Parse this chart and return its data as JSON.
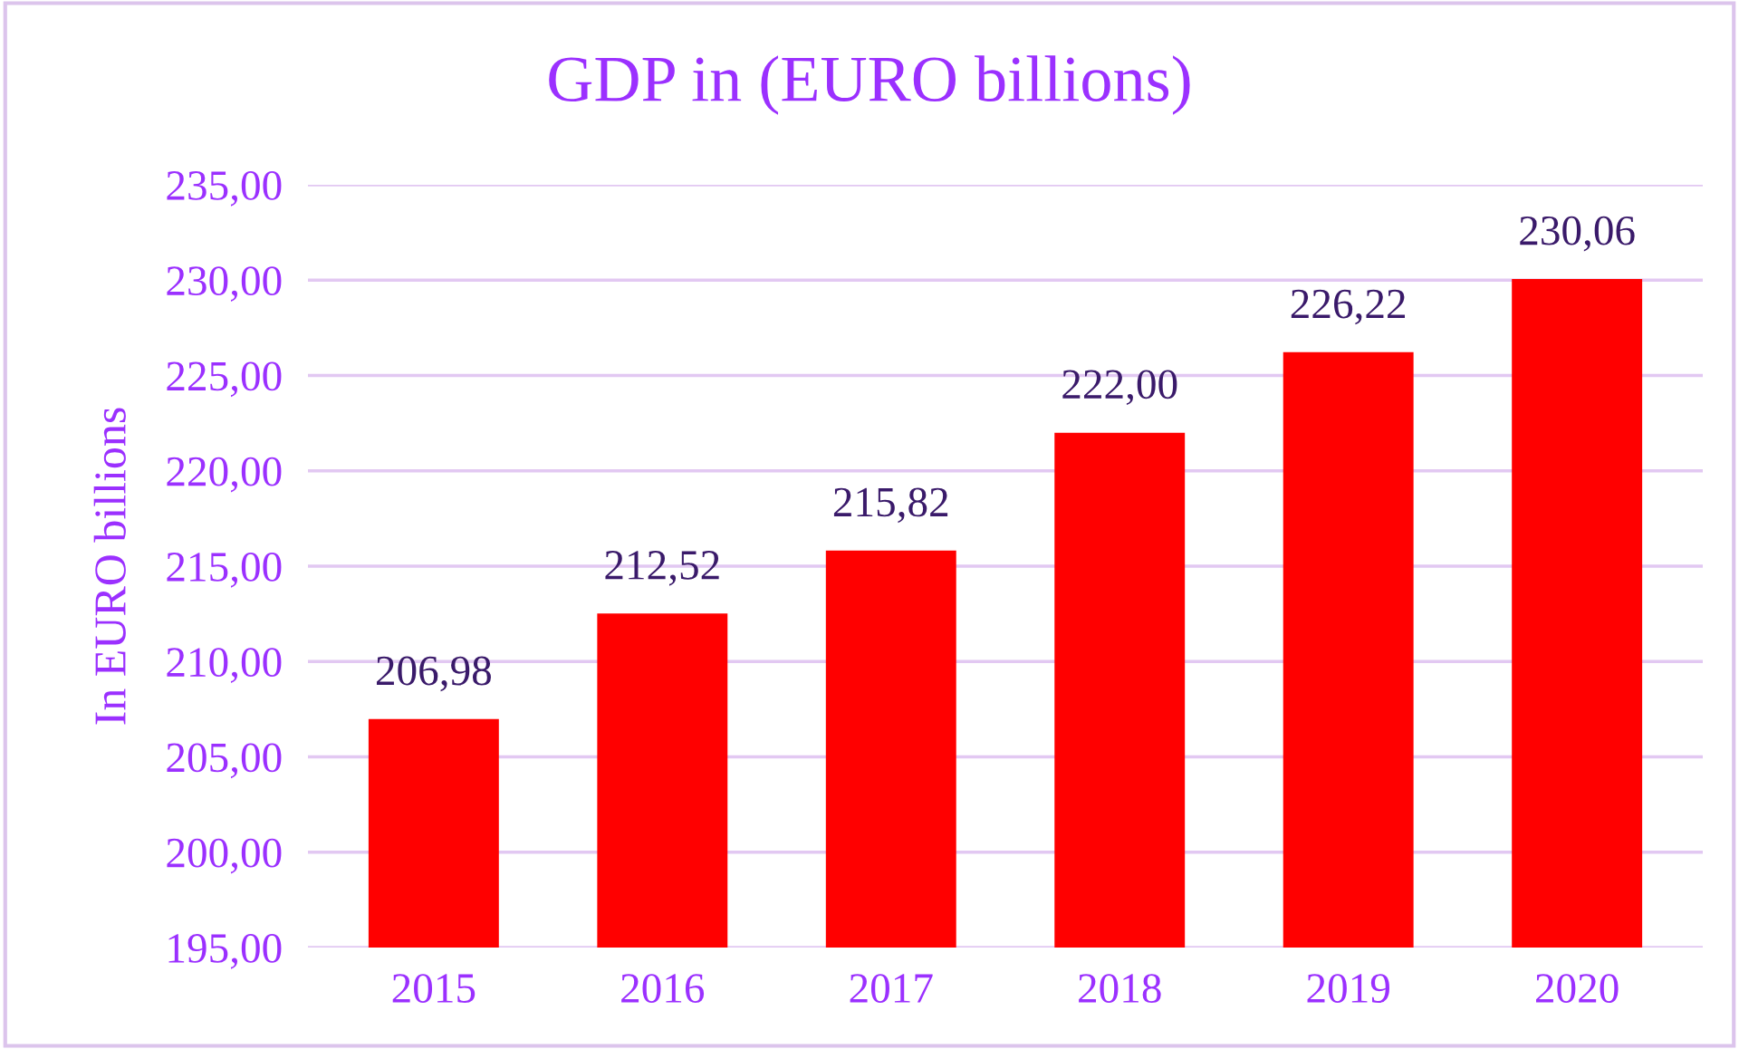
{
  "chart_data": {
    "type": "bar",
    "title": "GDP in (EURO billions)",
    "ylabel": "In EURO billions",
    "categories": [
      "2015",
      "2016",
      "2017",
      "2018",
      "2019",
      "2020"
    ],
    "values": [
      206.98,
      212.52,
      215.82,
      222.0,
      226.22,
      230.06
    ],
    "value_labels": [
      "206,98",
      "212,52",
      "215,82",
      "222,00",
      "226,22",
      "230,06"
    ],
    "color": "#ff0000",
    "ylim": [
      195,
      235
    ],
    "yticks": [
      {
        "value": 195,
        "label": "195,00"
      },
      {
        "value": 200,
        "label": "200,00"
      },
      {
        "value": 205,
        "label": "205,00"
      },
      {
        "value": 210,
        "label": "210,00"
      },
      {
        "value": 215,
        "label": "215,00"
      },
      {
        "value": 220,
        "label": "220,00"
      },
      {
        "value": 225,
        "label": "225,00"
      },
      {
        "value": 230,
        "label": "230,00"
      },
      {
        "value": 235,
        "label": "235,00"
      }
    ],
    "grid": "y",
    "legend": false
  }
}
